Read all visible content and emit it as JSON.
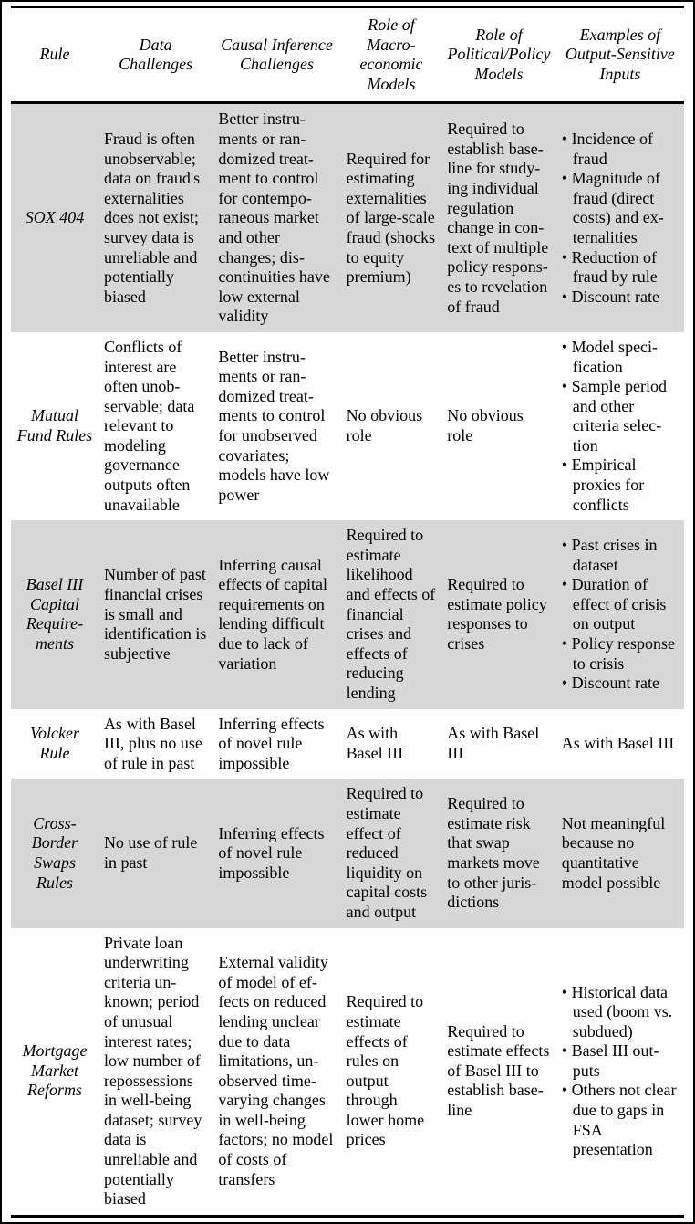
{
  "table": {
    "columns": [
      "Rule",
      "Data Challenges",
      "Causal Inference Challenges",
      "Role of Macro­economic Models",
      "Role of Political/​Policy Models",
      "Examples of Output-Sensitive Inputs"
    ],
    "rows": [
      {
        "shaded": true,
        "rule": "SOX 404",
        "data_challenges": "Fraud is often unobservable; data on fraud's exter­nalities does not exist; sur­vey data is unreliable and potentially biased",
        "causal": "Better instru­ments or ran­domized treat­ment to control for contempo­raneous market and other changes; dis­continuities have low exter­nal validity",
        "macro": "Required for estimat­ing exter­nalities of large-scale fraud (shocks to equity premium)",
        "policy": "Required to establish base­line for study­ing individual regulation change in con­text of multiple policy respons­es to revelation of fraud",
        "examples": [
          "Incidence of fraud",
          "Magnitude of fraud (direct costs) and ex­ternalities",
          "Reduction of fraud by rule",
          "Discount rate"
        ]
      },
      {
        "shaded": false,
        "rule": "Mutual Fund Rules",
        "data_challenges": "Conflicts of interest are often unob­servable; data relevant to modeling governance outputs often unavailable",
        "causal": "Better instru­ments or ran­domized treat­ments to control for unobserved covariates; models have low power",
        "macro": "No obvious role",
        "policy": "No obvious role",
        "examples": [
          "Model speci­fication",
          "Sample peri­od and other criteria selec­tion",
          "Empirical proxies for conflicts"
        ]
      },
      {
        "shaded": true,
        "rule": "Basel III Capital Require­ments",
        "data_challenges": "Number of past financial crises is small and identifi­cation is sub­jective",
        "causal": "Inferring causal effects of capital requirements on lending difficult due to lack of variation",
        "macro": "Required to estimate likelihood and effects of financial crises and effects of reducing lending",
        "policy": "Required to estimate policy responses to crises",
        "examples": [
          "Past crises in dataset",
          "Duration of effect of crisis on output",
          "Policy re­sponse to crisis",
          "Discount rate"
        ]
      },
      {
        "shaded": false,
        "rule": "Volcker Rule",
        "data_challenges": "As with Basel III, plus no use of rule in past",
        "causal": "Inferring effects of novel rule impossible",
        "macro": "As with Basel III",
        "policy": "As with Basel III",
        "examples_text": "As with Basel III"
      },
      {
        "shaded": true,
        "rule": "Cross-Border Swaps Rules",
        "data_challenges": "No use of rule in past",
        "causal": "Inferring effects of novel rule impossible",
        "macro": "Required to estimate effect of reduced liquidity on capital costs and output",
        "policy": "Required to estimate risk that swap markets move to other juris­dictions",
        "examples_text": "Not meaning­ful because no quantitative model possible"
      },
      {
        "shaded": false,
        "rule": "Mortgage Market Reforms",
        "data_challenges": "Private loan underwriting criteria un­known; peri­od of unusual interest rates; low number of reposses­sions in well-being dataset; survey data is unreliable and potentially biased",
        "causal": "External validity of model of ef­fects on reduced lending unclear due to data limitations, un­observed time-varying changes in well-being factors; no model of costs of transfers",
        "macro": "Required to estimate effects of rules on output through lower home prices",
        "policy": "Required to estimate effects of Basel III to establish base­line",
        "examples": [
          "Historical data used (boom vs. sub­dued)",
          "Basel III out­puts",
          "Others not clear due to gaps in FSA presentation"
        ]
      }
    ]
  }
}
